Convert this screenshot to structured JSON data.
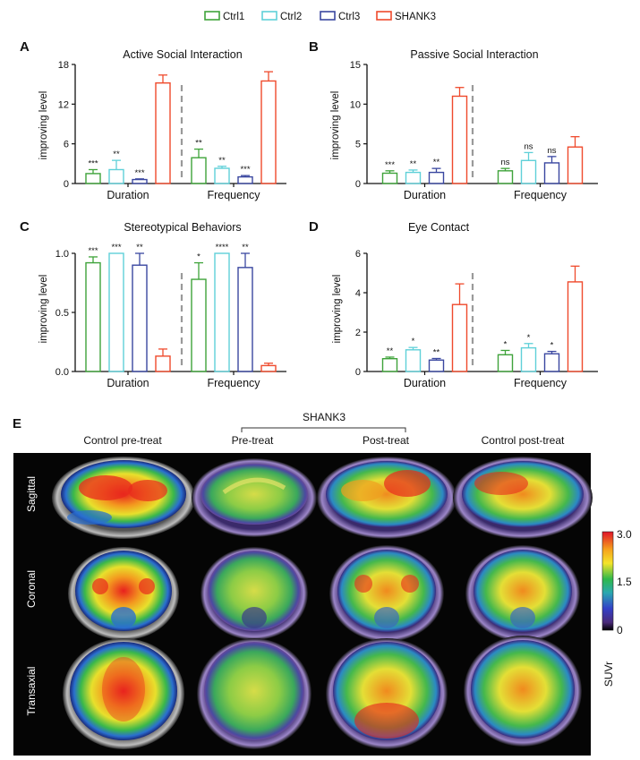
{
  "legend": [
    {
      "name": "Ctrl1",
      "color": "#3fa33a"
    },
    {
      "name": "Ctrl2",
      "color": "#5fd0d8"
    },
    {
      "name": "Ctrl3",
      "color": "#3a47a0"
    },
    {
      "name": "SHANK3",
      "color": "#ef4a2c"
    }
  ],
  "chart_data": [
    {
      "panel": "A",
      "type": "bar",
      "title": "Active Social Interaction",
      "ylabel": "improving level",
      "ylim": [
        0,
        18
      ],
      "yticks": [
        "0",
        "6",
        "12",
        "18"
      ],
      "ytick_values": [
        0,
        6,
        12,
        18
      ],
      "categories": [
        "Duration",
        "Frequency"
      ],
      "series": [
        {
          "name": "Ctrl1",
          "values": [
            1.5,
            3.9
          ],
          "errors": [
            0.6,
            1.3
          ],
          "sig": [
            "***",
            "**"
          ]
        },
        {
          "name": "Ctrl2",
          "values": [
            2.1,
            2.3
          ],
          "errors": [
            1.4,
            0.3
          ],
          "sig": [
            "**",
            "**"
          ]
        },
        {
          "name": "Ctrl3",
          "values": [
            0.6,
            1.0
          ],
          "errors": [
            0.1,
            0.2
          ],
          "sig": [
            "***",
            "***"
          ]
        },
        {
          "name": "SHANK3",
          "values": [
            15.2,
            15.5
          ],
          "errors": [
            1.2,
            1.4
          ],
          "sig": [
            "",
            ""
          ]
        }
      ]
    },
    {
      "panel": "B",
      "type": "bar",
      "title": "Passive Social Interaction",
      "ylabel": "improving level",
      "ylim": [
        0,
        15
      ],
      "yticks": [
        "0",
        "5",
        "10",
        "15"
      ],
      "ytick_values": [
        0,
        5,
        10,
        15
      ],
      "categories": [
        "Duration",
        "Frequency"
      ],
      "series": [
        {
          "name": "Ctrl1",
          "values": [
            1.3,
            1.6
          ],
          "errors": [
            0.3,
            0.3
          ],
          "sig": [
            "***",
            "ns"
          ]
        },
        {
          "name": "Ctrl2",
          "values": [
            1.4,
            2.9
          ],
          "errors": [
            0.3,
            1.0
          ],
          "sig": [
            "**",
            "ns"
          ]
        },
        {
          "name": "Ctrl3",
          "values": [
            1.4,
            2.6
          ],
          "errors": [
            0.5,
            0.8
          ],
          "sig": [
            "**",
            "ns"
          ]
        },
        {
          "name": "SHANK3",
          "values": [
            11.0,
            4.6
          ],
          "errors": [
            1.1,
            1.3
          ],
          "sig": [
            "",
            ""
          ]
        }
      ]
    },
    {
      "panel": "C",
      "type": "bar",
      "title": "Stereotypical Behaviors",
      "ylabel": "improving level",
      "ylim": [
        0,
        1.0
      ],
      "yticks": [
        "0.0",
        "0.5",
        "1.0"
      ],
      "ytick_values": [
        0,
        0.5,
        1.0
      ],
      "categories": [
        "Duration",
        "Frequency"
      ],
      "series": [
        {
          "name": "Ctrl1",
          "values": [
            0.92,
            0.78
          ],
          "errors": [
            0.05,
            0.14
          ],
          "sig": [
            "***",
            "*"
          ]
        },
        {
          "name": "Ctrl2",
          "values": [
            1.0,
            1.0
          ],
          "errors": [
            0,
            0
          ],
          "sig": [
            "***",
            "****"
          ]
        },
        {
          "name": "Ctrl3",
          "values": [
            0.9,
            0.88
          ],
          "errors": [
            0.1,
            0.12
          ],
          "sig": [
            "**",
            "**"
          ]
        },
        {
          "name": "SHANK3",
          "values": [
            0.13,
            0.05
          ],
          "errors": [
            0.06,
            0.02
          ],
          "sig": [
            "",
            ""
          ]
        }
      ]
    },
    {
      "panel": "D",
      "type": "bar",
      "title": "Eye Contact",
      "ylabel": "improving level",
      "ylim": [
        0,
        6
      ],
      "yticks": [
        "0",
        "2",
        "4",
        "6"
      ],
      "ytick_values": [
        0,
        2,
        4,
        6
      ],
      "categories": [
        "Duration",
        "Frequency"
      ],
      "series": [
        {
          "name": "Ctrl1",
          "values": [
            0.65,
            0.85
          ],
          "errors": [
            0.08,
            0.22
          ],
          "sig": [
            "**",
            "*"
          ]
        },
        {
          "name": "Ctrl2",
          "values": [
            1.1,
            1.2
          ],
          "errors": [
            0.12,
            0.22
          ],
          "sig": [
            "*",
            "*"
          ]
        },
        {
          "name": "Ctrl3",
          "values": [
            0.58,
            0.9
          ],
          "errors": [
            0.08,
            0.12
          ],
          "sig": [
            "**",
            "*"
          ]
        },
        {
          "name": "SHANK3",
          "values": [
            3.4,
            4.55
          ],
          "errors": [
            1.05,
            0.8
          ],
          "sig": [
            "",
            ""
          ]
        }
      ]
    }
  ],
  "panel_e": {
    "letter": "E",
    "group_label": "SHANK3",
    "columns": [
      "Control pre-treat",
      "Pre-treat",
      "Post-treat",
      "Control post-treat"
    ],
    "rows": [
      "Sagittal",
      "Coronal",
      "Transaxial"
    ],
    "colorbar": {
      "label": "SUVr",
      "ticks": [
        "3.0",
        "1.5",
        "0"
      ],
      "tick_values": [
        3.0,
        1.5,
        0
      ]
    }
  }
}
